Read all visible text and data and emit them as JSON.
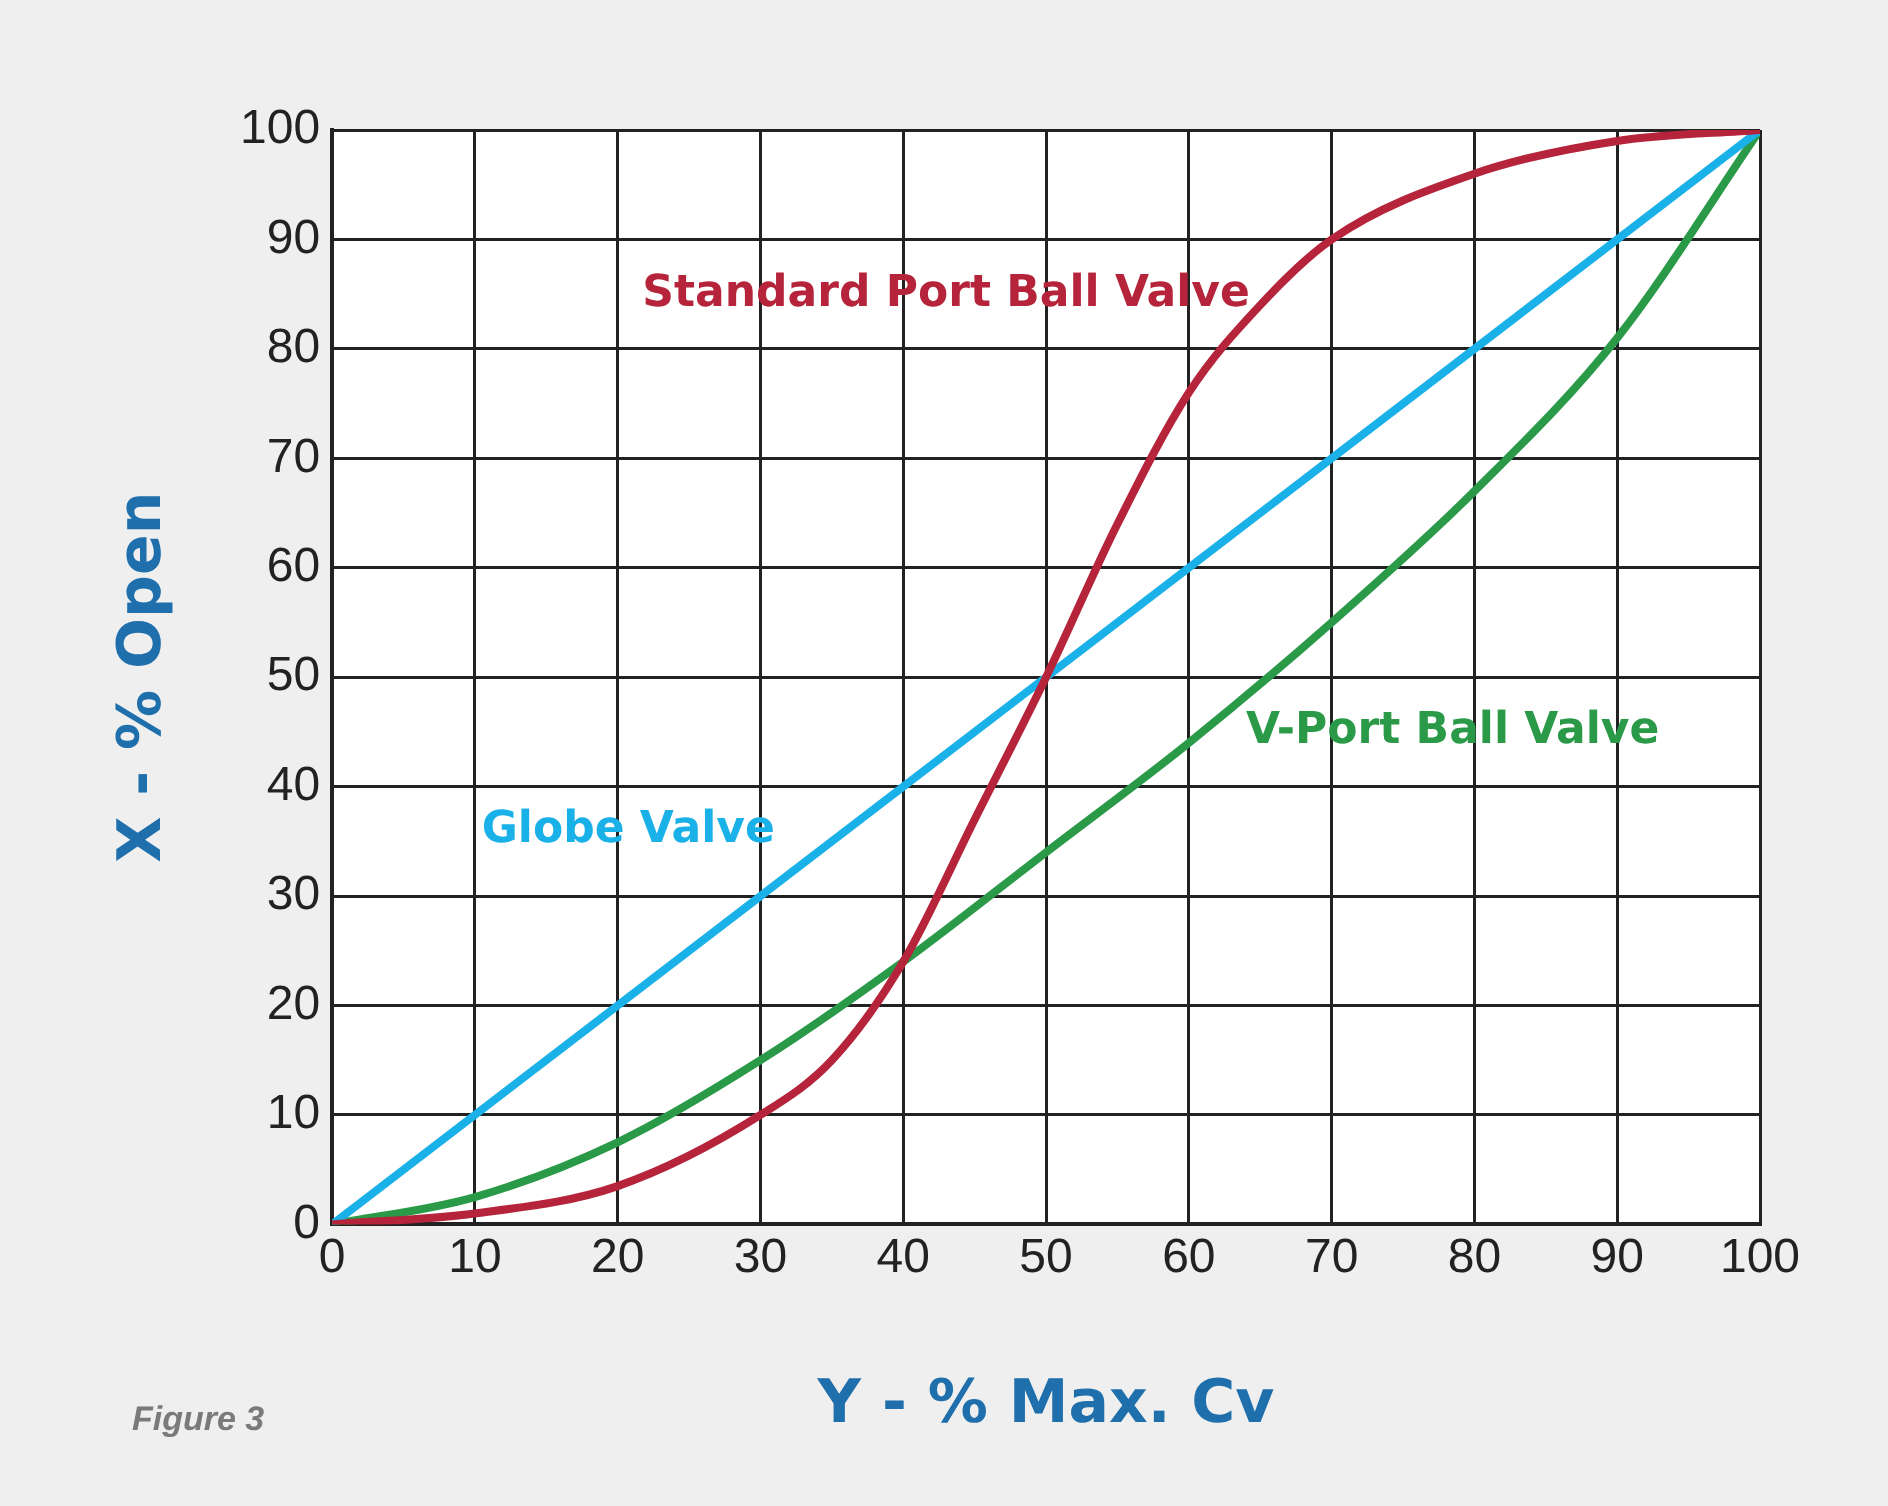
{
  "chart_data": {
    "type": "line",
    "xlabel": "Y - % Max. Cv",
    "ylabel": "X - % Open",
    "annotations": [
      "Figure 3"
    ],
    "xlim": [
      0,
      100
    ],
    "ylim": [
      0,
      100
    ],
    "xticks": [
      0,
      10,
      20,
      30,
      40,
      50,
      60,
      70,
      80,
      90,
      100
    ],
    "yticks": [
      0,
      10,
      20,
      30,
      40,
      50,
      60,
      70,
      80,
      90,
      100
    ],
    "grid": true,
    "legend": false,
    "marker": "none",
    "line_style": "solid",
    "series": [
      {
        "name": "Standard Port Ball Valve",
        "color": "#b5243a",
        "x": [
          0,
          10,
          20,
          30,
          35,
          40,
          45,
          50,
          55,
          60,
          65,
          70,
          80,
          90,
          100
        ],
        "values": [
          0,
          1,
          3.5,
          10,
          15,
          24,
          37,
          50,
          64,
          76,
          84,
          90,
          96,
          99,
          100
        ]
      },
      {
        "name": "Globe Valve",
        "color": "#1ab0e8",
        "x": [
          0,
          100
        ],
        "values": [
          0,
          100
        ]
      },
      {
        "name": "V-Port Ball Valve",
        "color": "#2a9a48",
        "x": [
          0,
          10,
          20,
          30,
          40,
          50,
          60,
          70,
          80,
          90,
          100
        ],
        "values": [
          0,
          2.5,
          7.5,
          15,
          24,
          34,
          44,
          55,
          67,
          81,
          100
        ]
      }
    ]
  }
}
